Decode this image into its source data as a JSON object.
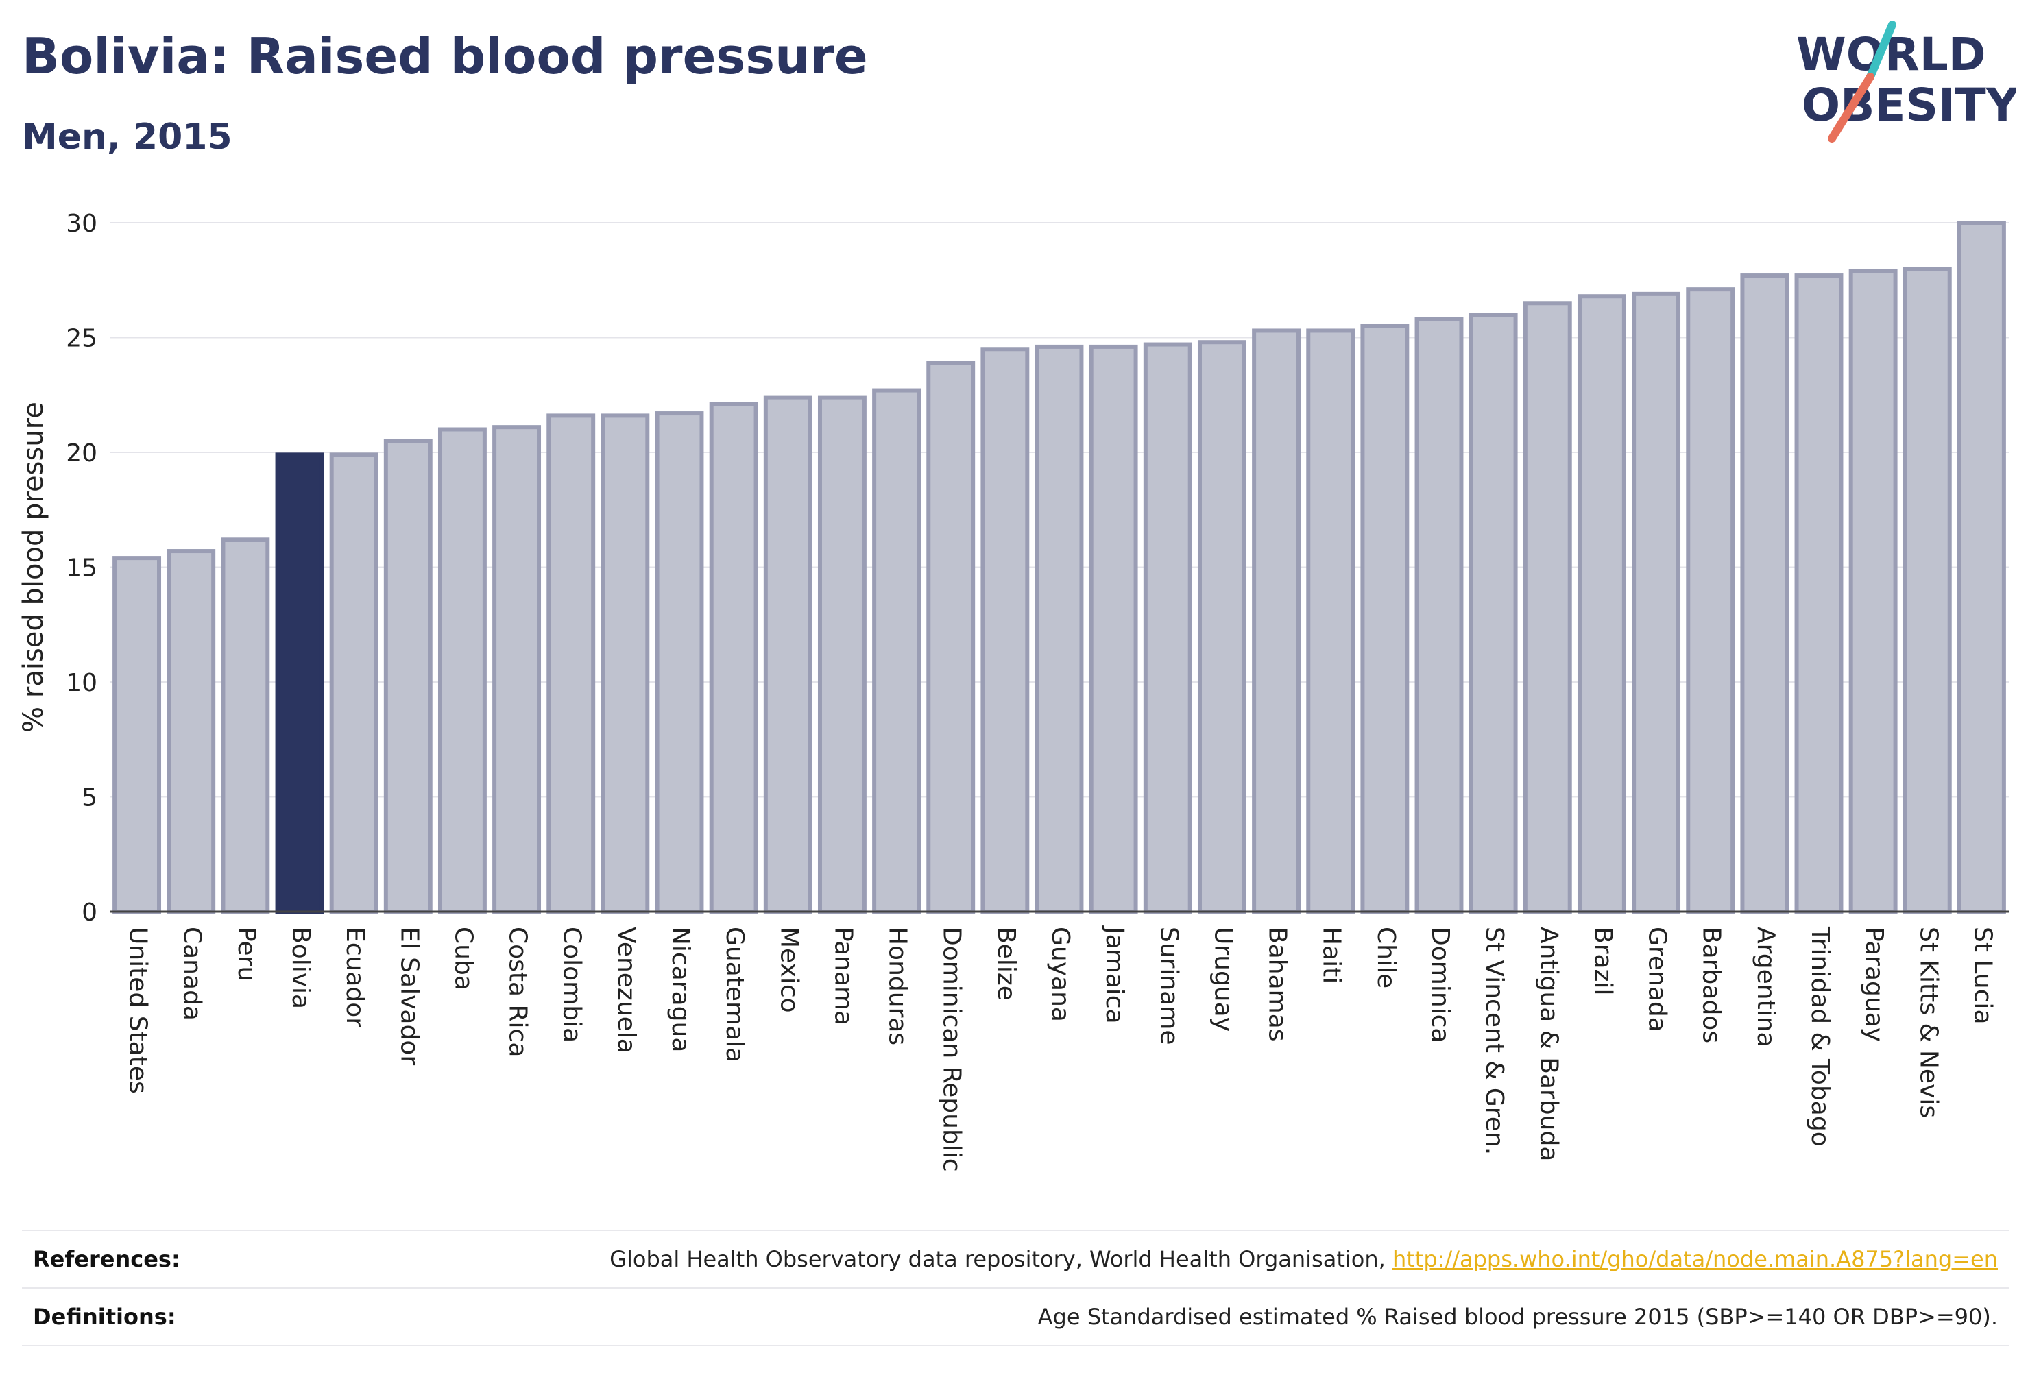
{
  "header": {
    "title": "Bolivia: Raised blood pressure",
    "subtitle": "Men, 2015"
  },
  "logo": {
    "line1": "WORLD",
    "line2": "OBESITY"
  },
  "colors": {
    "highlight": "#2b3560",
    "bar_fill": "#bfc2cf",
    "bar_stroke": "#9a9db4",
    "logo_teal": "#3bbfc1",
    "logo_coral": "#e8705a",
    "link": "#e8b117"
  },
  "chart_data": {
    "type": "bar",
    "ylabel": "% raised blood pressure",
    "xlabel": "",
    "ylim": [
      0,
      30
    ],
    "yticks": [
      0,
      5,
      10,
      15,
      20,
      25,
      30
    ],
    "grid": true,
    "highlight": "Bolivia",
    "categories": [
      "United States",
      "Canada",
      "Peru",
      "Bolivia",
      "Ecuador",
      "El Salvador",
      "Cuba",
      "Costa Rica",
      "Colombia",
      "Venezuela",
      "Nicaragua",
      "Guatemala",
      "Mexico",
      "Panama",
      "Honduras",
      "Dominican Republic",
      "Belize",
      "Guyana",
      "Jamaica",
      "Suriname",
      "Uruguay",
      "Bahamas",
      "Haiti",
      "Chile",
      "Dominica",
      "St Vincent & Gren.",
      "Antigua & Barbuda",
      "Brazil",
      "Grenada",
      "Barbados",
      "Argentina",
      "Trinidad & Tobago",
      "Paraguay",
      "St Kitts & Nevis",
      "St Lucia"
    ],
    "values": [
      15.4,
      15.7,
      16.2,
      19.9,
      19.9,
      20.5,
      21.0,
      21.1,
      21.6,
      21.6,
      21.7,
      22.1,
      22.4,
      22.4,
      22.7,
      23.9,
      24.5,
      24.6,
      24.6,
      24.7,
      24.8,
      25.3,
      25.3,
      25.5,
      25.8,
      26.0,
      26.5,
      26.8,
      26.9,
      27.1,
      27.7,
      27.7,
      27.9,
      28.0,
      30.0
    ]
  },
  "footer": {
    "references_label": "References:",
    "references_text": "Global Health Observatory data repository, World Health Organisation, ",
    "references_link": "http://apps.who.int/gho/data/node.main.A875?lang=en",
    "definitions_label": "Definitions:",
    "definitions_text": "Age Standardised estimated % Raised blood pressure 2015 (SBP>=140 OR DBP>=90)."
  }
}
